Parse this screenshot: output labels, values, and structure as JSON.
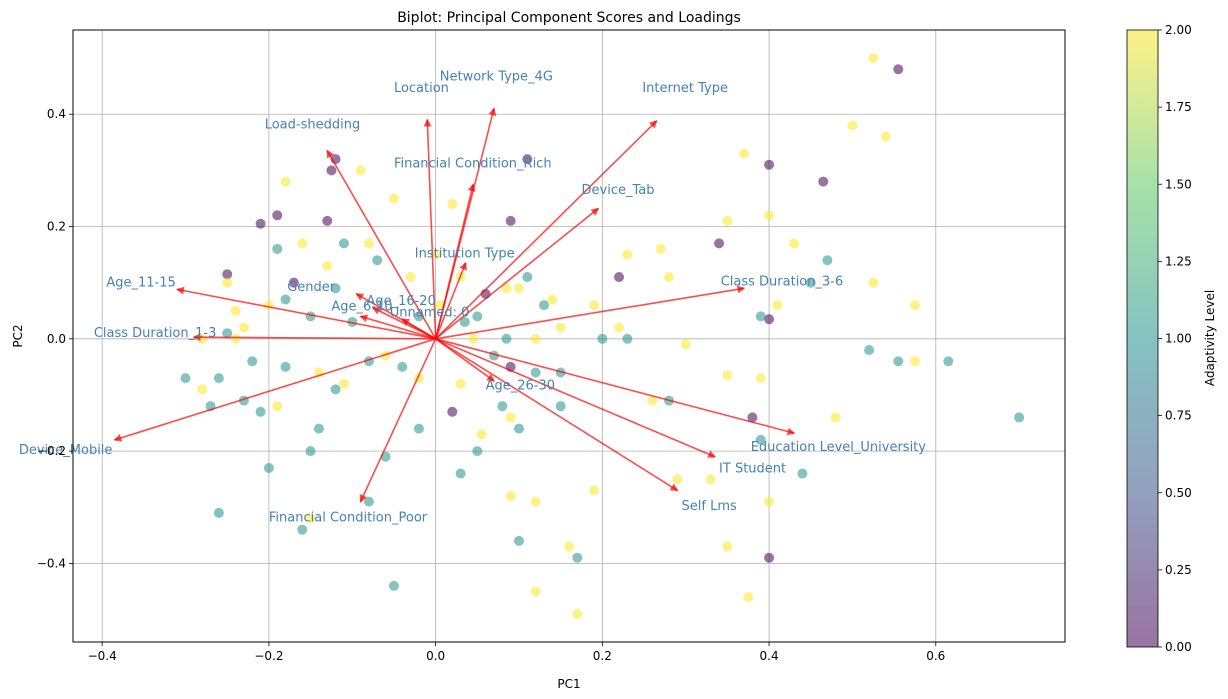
{
  "chart_data": {
    "type": "scatter",
    "title": "Biplot: Principal Component Scores and Loadings",
    "xlabel": "PC1",
    "ylabel": "PC2",
    "xlim": [
      -0.435,
      0.755
    ],
    "ylim": [
      -0.54,
      0.55
    ],
    "xticks": [
      -0.4,
      -0.2,
      0.0,
      0.2,
      0.4,
      0.6
    ],
    "yticks": [
      -0.4,
      -0.2,
      0.0,
      0.2,
      0.4
    ],
    "xtick_labels": [
      "−0.4",
      "−0.2",
      "0.0",
      "0.2",
      "0.4",
      "0.6"
    ],
    "ytick_labels": [
      "−0.4",
      "−0.2",
      "0.0",
      "0.2",
      "0.4"
    ],
    "grid": true,
    "colorbar": {
      "label": "Adaptivity Level",
      "range": [
        0,
        2
      ],
      "ticks": [
        "0.00",
        "0.25",
        "0.50",
        "0.75",
        "1.00",
        "1.25",
        "1.50",
        "1.75",
        "2.00"
      ],
      "colormap": "viridis",
      "colors": [
        "#440154",
        "#3b528b",
        "#21918c",
        "#5ec962",
        "#fde725"
      ]
    },
    "arrow_color": "#ff0000",
    "label_color": "#4682b4",
    "loadings": [
      {
        "name": "Location",
        "x": -0.01,
        "y": 0.39,
        "lx": -0.05,
        "ly": 0.44
      },
      {
        "name": "Network Type_4G",
        "x": 0.07,
        "y": 0.41,
        "lx": 0.005,
        "ly": 0.46
      },
      {
        "name": "Internet Type",
        "x": 0.265,
        "y": 0.388,
        "lx": 0.248,
        "ly": 0.44
      },
      {
        "name": "Load-shedding",
        "x": -0.13,
        "y": 0.335,
        "lx": -0.205,
        "ly": 0.375
      },
      {
        "name": "Financial Condition_Rich",
        "x": 0.045,
        "y": 0.275,
        "lx": -0.05,
        "ly": 0.305
      },
      {
        "name": "Device_Tab",
        "x": 0.195,
        "y": 0.232,
        "lx": 0.175,
        "ly": 0.258
      },
      {
        "name": "Institution Type",
        "x": 0.036,
        "y": 0.135,
        "lx": -0.025,
        "ly": 0.145
      },
      {
        "name": "Class Duration_3-6",
        "x": 0.37,
        "y": 0.09,
        "lx": 0.342,
        "ly": 0.095
      },
      {
        "name": "Age_11-15",
        "x": -0.31,
        "y": 0.088,
        "lx": -0.395,
        "ly": 0.093
      },
      {
        "name": "Gender",
        "x": -0.095,
        "y": 0.08,
        "lx": -0.178,
        "ly": 0.085
      },
      {
        "name": "Age_16-20",
        "x": -0.075,
        "y": 0.055,
        "lx": -0.083,
        "ly": 0.06
      },
      {
        "name": "Age_6-10",
        "x": -0.09,
        "y": 0.04,
        "lx": -0.125,
        "ly": 0.05
      },
      {
        "name": "Unnamed: 0",
        "x": -0.04,
        "y": 0.035,
        "lx": -0.055,
        "ly": 0.04
      },
      {
        "name": "Class Duration_1-3",
        "x": -0.29,
        "y": 0.003,
        "lx": -0.41,
        "ly": 0.003
      },
      {
        "name": "Age_26-30",
        "x": 0.07,
        "y": -0.075,
        "lx": 0.06,
        "ly": -0.09
      },
      {
        "name": "Education Level_University",
        "x": 0.43,
        "y": -0.168,
        "lx": 0.378,
        "ly": -0.2
      },
      {
        "name": "IT Student",
        "x": 0.335,
        "y": -0.21,
        "lx": 0.34,
        "ly": -0.238
      },
      {
        "name": "Self Lms",
        "x": 0.29,
        "y": -0.27,
        "lx": 0.295,
        "ly": -0.305
      },
      {
        "name": "Financial Condition_Poor",
        "x": -0.09,
        "y": -0.29,
        "lx": -0.2,
        "ly": -0.325
      },
      {
        "name": "Device_Mobile",
        "x": -0.385,
        "y": -0.18,
        "lx": -0.5,
        "ly": -0.205
      }
    ],
    "scores": [
      [
        -0.12,
        0.32,
        0
      ],
      [
        -0.125,
        0.3,
        0
      ],
      [
        -0.21,
        0.205,
        0
      ],
      [
        -0.19,
        0.22,
        0
      ],
      [
        -0.17,
        0.1,
        0
      ],
      [
        -0.25,
        0.115,
        0
      ],
      [
        0.11,
        0.32,
        0
      ],
      [
        0.22,
        0.11,
        0
      ],
      [
        0.4,
        0.31,
        0
      ],
      [
        0.555,
        0.48,
        0
      ],
      [
        0.465,
        0.28,
        0
      ],
      [
        0.38,
        -0.14,
        0
      ],
      [
        0.4,
        -0.39,
        0
      ],
      [
        0.34,
        0.17,
        0
      ],
      [
        0.4,
        0.035,
        0
      ],
      [
        0.09,
        -0.05,
        0
      ],
      [
        0.02,
        -0.13,
        0
      ],
      [
        0.09,
        0.21,
        0
      ],
      [
        -0.13,
        0.21,
        0
      ],
      [
        0.06,
        0.08,
        0
      ],
      [
        -0.1,
        0.03,
        1
      ],
      [
        -0.15,
        0.04,
        1
      ],
      [
        -0.18,
        0.07,
        1
      ],
      [
        -0.21,
        -0.13,
        1
      ],
      [
        -0.27,
        -0.12,
        1
      ],
      [
        -0.3,
        -0.07,
        1
      ],
      [
        -0.26,
        -0.07,
        1
      ],
      [
        -0.23,
        -0.11,
        1
      ],
      [
        -0.2,
        -0.23,
        1
      ],
      [
        -0.15,
        -0.2,
        1
      ],
      [
        -0.16,
        -0.34,
        1
      ],
      [
        -0.26,
        -0.31,
        1
      ],
      [
        -0.08,
        -0.29,
        1
      ],
      [
        -0.04,
        -0.05,
        1
      ],
      [
        -0.02,
        -0.16,
        1
      ],
      [
        0.05,
        -0.2,
        1
      ],
      [
        0.08,
        -0.12,
        1
      ],
      [
        0.1,
        -0.16,
        1
      ],
      [
        0.12,
        -0.06,
        1
      ],
      [
        0.15,
        -0.12,
        1
      ],
      [
        0.1,
        -0.36,
        1
      ],
      [
        0.17,
        -0.39,
        1
      ],
      [
        0.03,
        -0.24,
        1
      ],
      [
        -0.06,
        -0.21,
        1
      ],
      [
        -0.12,
        -0.09,
        1
      ],
      [
        -0.18,
        -0.05,
        1
      ],
      [
        -0.25,
        0.01,
        1
      ],
      [
        -0.11,
        0.17,
        1
      ],
      [
        -0.07,
        0.14,
        1
      ],
      [
        -0.19,
        0.16,
        1
      ],
      [
        -0.05,
        -0.44,
        1
      ],
      [
        -0.12,
        0.09,
        1
      ],
      [
        0.05,
        0.04,
        1
      ],
      [
        0.11,
        0.11,
        1
      ],
      [
        0.13,
        0.06,
        1
      ],
      [
        0.2,
        0.0,
        1
      ],
      [
        0.23,
        0.0,
        1
      ],
      [
        0.28,
        -0.11,
        1
      ],
      [
        0.39,
        -0.18,
        1
      ],
      [
        0.39,
        0.04,
        1
      ],
      [
        0.44,
        -0.24,
        1
      ],
      [
        0.45,
        0.1,
        1
      ],
      [
        0.47,
        0.14,
        1
      ],
      [
        0.52,
        -0.02,
        1
      ],
      [
        0.555,
        -0.04,
        1
      ],
      [
        0.615,
        -0.04,
        1
      ],
      [
        0.7,
        -0.14,
        1
      ],
      [
        0.15,
        -0.06,
        1
      ],
      [
        0.07,
        -0.03,
        1
      ],
      [
        -0.02,
        0.04,
        1
      ],
      [
        -0.08,
        -0.04,
        1
      ],
      [
        -0.14,
        -0.16,
        1
      ],
      [
        -0.22,
        -0.04,
        1
      ],
      [
        0.085,
        0.0,
        1
      ],
      [
        0.035,
        0.03,
        1
      ],
      [
        -0.25,
        0.1,
        2
      ],
      [
        -0.24,
        0.05,
        2
      ],
      [
        -0.23,
        0.02,
        2
      ],
      [
        -0.28,
        0.0,
        2
      ],
      [
        -0.2,
        0.06,
        2
      ],
      [
        -0.18,
        0.28,
        2
      ],
      [
        -0.09,
        0.3,
        2
      ],
      [
        -0.05,
        0.25,
        2
      ],
      [
        0.02,
        0.24,
        2
      ],
      [
        0.0,
        0.15,
        2
      ],
      [
        0.03,
        0.11,
        2
      ],
      [
        -0.03,
        0.11,
        2
      ],
      [
        0.1,
        0.09,
        2
      ],
      [
        0.14,
        0.07,
        2
      ],
      [
        0.19,
        0.06,
        2
      ],
      [
        0.23,
        0.15,
        2
      ],
      [
        0.27,
        0.16,
        2
      ],
      [
        0.28,
        0.11,
        2
      ],
      [
        0.35,
        0.21,
        2
      ],
      [
        0.37,
        0.33,
        2
      ],
      [
        0.4,
        0.22,
        2
      ],
      [
        0.43,
        0.17,
        2
      ],
      [
        0.41,
        0.06,
        2
      ],
      [
        0.5,
        0.38,
        2
      ],
      [
        0.525,
        0.5,
        2
      ],
      [
        0.54,
        0.36,
        2
      ],
      [
        0.525,
        0.1,
        2
      ],
      [
        0.575,
        0.06,
        2
      ],
      [
        0.575,
        -0.04,
        2
      ],
      [
        0.48,
        -0.14,
        2
      ],
      [
        0.4,
        -0.29,
        2
      ],
      [
        0.375,
        -0.46,
        2
      ],
      [
        0.35,
        -0.37,
        2
      ],
      [
        0.33,
        -0.25,
        2
      ],
      [
        0.29,
        -0.25,
        2
      ],
      [
        0.19,
        -0.27,
        2
      ],
      [
        0.16,
        -0.37,
        2
      ],
      [
        0.17,
        -0.49,
        2
      ],
      [
        0.12,
        -0.45,
        2
      ],
      [
        0.12,
        -0.29,
        2
      ],
      [
        0.09,
        -0.28,
        2
      ],
      [
        0.09,
        -0.14,
        2
      ],
      [
        0.055,
        -0.17,
        2
      ],
      [
        0.03,
        -0.08,
        2
      ],
      [
        -0.02,
        -0.07,
        2
      ],
      [
        -0.06,
        -0.03,
        2
      ],
      [
        -0.11,
        -0.08,
        2
      ],
      [
        -0.14,
        -0.06,
        2
      ],
      [
        -0.15,
        -0.32,
        2
      ],
      [
        -0.19,
        -0.12,
        2
      ],
      [
        -0.24,
        0.0,
        2
      ],
      [
        -0.28,
        -0.09,
        2
      ],
      [
        -0.16,
        0.17,
        2
      ],
      [
        -0.13,
        0.13,
        2
      ],
      [
        -0.08,
        0.17,
        2
      ],
      [
        0.12,
        0.0,
        2
      ],
      [
        0.15,
        0.02,
        2
      ],
      [
        0.22,
        0.02,
        2
      ],
      [
        0.26,
        -0.11,
        2
      ],
      [
        0.3,
        -0.01,
        2
      ],
      [
        0.35,
        -0.065,
        2
      ],
      [
        0.39,
        -0.07,
        2
      ],
      [
        0.005,
        0.06,
        2
      ],
      [
        0.045,
        0.0,
        2
      ],
      [
        0.085,
        0.09,
        2
      ]
    ]
  }
}
